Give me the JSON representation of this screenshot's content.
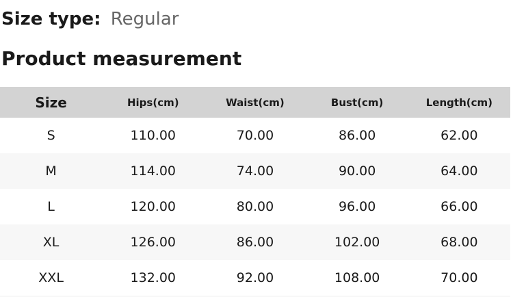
{
  "size_type": {
    "label": "Size type:",
    "value": "Regular"
  },
  "section_title": "Product measurement",
  "table": {
    "columns": [
      "Size",
      "Hips(cm)",
      "Waist(cm)",
      "Bust(cm)",
      "Length(cm)"
    ],
    "rows": [
      [
        "S",
        "110.00",
        "70.00",
        "86.00",
        "62.00"
      ],
      [
        "M",
        "114.00",
        "74.00",
        "90.00",
        "64.00"
      ],
      [
        "L",
        "120.00",
        "80.00",
        "96.00",
        "66.00"
      ],
      [
        "XL",
        "126.00",
        "86.00",
        "102.00",
        "68.00"
      ],
      [
        "XXL",
        "132.00",
        "92.00",
        "108.00",
        "70.00"
      ]
    ]
  },
  "colors": {
    "header_bg": "#d3d3d3",
    "stripe_bg": "#f7f7f7",
    "text": "#1a1a1a",
    "muted_text": "#666666"
  }
}
